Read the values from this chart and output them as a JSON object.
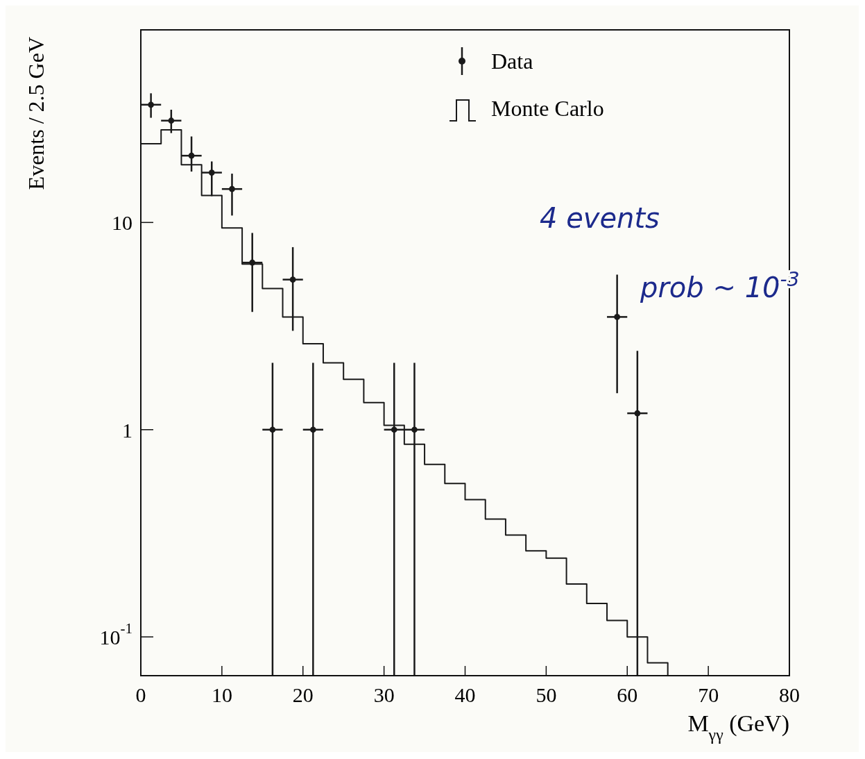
{
  "chart_data": {
    "type": "scatter",
    "xlabel": "M$_{γγ}$ (GeV)",
    "ylabel": "Events / 2.5 GeV",
    "xlim": [
      0,
      80
    ],
    "ylim": [
      0.065,
      85
    ],
    "log": "y",
    "grid": false,
    "legend": "top",
    "xticks": [
      0,
      10,
      20,
      30,
      40,
      50,
      60,
      70,
      80
    ],
    "yticks": [
      {
        "value": 0.1,
        "label": "10$^{-1}$"
      },
      1,
      10
    ],
    "annotations": [
      "4 events",
      "prob ~ 10$^{-3}$"
    ],
    "series": [
      {
        "name": "Data",
        "type": "scatter",
        "color": "#1a1a1a",
        "marker": "circle",
        "x": [
          1.25,
          3.75,
          6.25,
          8.75,
          11.25,
          13.75,
          16.25,
          18.75,
          21.25,
          31.25,
          33.75,
          58.75,
          61.25
        ],
        "values": [
          37,
          31,
          21,
          17.4,
          14.5,
          6.4,
          1,
          5.3,
          1,
          1,
          1,
          3.5,
          1.2
        ],
        "errors": [
          [
            32,
            42
          ],
          [
            27,
            35
          ],
          [
            17.6,
            26
          ],
          [
            13.4,
            19.7
          ],
          [
            10.8,
            17.2
          ],
          [
            3.7,
            8.9
          ],
          [
            0.065,
            2.1
          ],
          [
            3,
            7.6
          ],
          [
            0.065,
            2.1
          ],
          [
            0.065,
            2.1
          ],
          [
            0.065,
            2.1
          ],
          [
            1.5,
            5.6
          ],
          [
            0.065,
            2.4
          ]
        ],
        "xerrors": [
          1.25,
          1.25,
          1.25,
          1.25,
          1.25,
          1.25,
          1.25,
          1.25,
          1.25,
          1.25,
          1.25,
          1.25,
          1.25
        ]
      },
      {
        "name": "Monte Carlo",
        "type": "histogram",
        "color": "#1a1a1a",
        "bins": [
          0,
          2.5,
          5,
          7.5,
          10,
          12.5,
          15,
          17.5,
          20,
          22.5,
          25,
          27.5,
          30,
          32.5,
          35,
          37.5,
          40,
          42.5,
          45,
          47.5,
          50,
          52.5,
          55,
          57.5,
          60,
          62.5,
          65
        ],
        "values": [
          24,
          28,
          19,
          13.5,
          9.4,
          6.3,
          4.8,
          3.5,
          2.6,
          2.1,
          1.75,
          1.35,
          1.05,
          0.85,
          0.68,
          0.55,
          0.46,
          0.37,
          0.31,
          0.26,
          0.24,
          0.18,
          0.145,
          0.12,
          0.1,
          0.075
        ]
      }
    ]
  }
}
